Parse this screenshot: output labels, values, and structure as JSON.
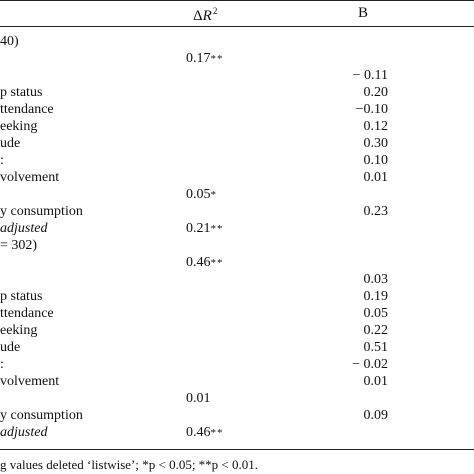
{
  "header": {
    "delta_symbol": "Δ",
    "r_symbol": "R",
    "r_superscript": "2",
    "col_b": "B"
  },
  "rows": [
    {
      "label": " 40)",
      "dr": "",
      "sig": "",
      "b": ""
    },
    {
      "label": "",
      "dr": "0.17",
      "sig": "**",
      "b": ""
    },
    {
      "label": "",
      "dr": "",
      "sig": "",
      "b": "− 0.11"
    },
    {
      "label": "p status",
      "dr": "",
      "sig": "",
      "b": "0.20"
    },
    {
      "label": "ttendance",
      "dr": "",
      "sig": "",
      "b": "−0.10"
    },
    {
      "label": "eeking",
      "dr": "",
      "sig": "",
      "b": "0.12"
    },
    {
      "label": "ude",
      "dr": "",
      "sig": "",
      "b": "0.30"
    },
    {
      "label": ":",
      "dr": "",
      "sig": "",
      "b": "0.10"
    },
    {
      "label": "volvement",
      "dr": "",
      "sig": "",
      "b": "0.01"
    },
    {
      "label": "",
      "dr": "0.05",
      "sig": "*",
      "b": ""
    },
    {
      "label": "y consumption",
      "dr": "",
      "sig": "",
      "b": "0.23"
    },
    {
      "label": "adjusted",
      "dr": "0.21",
      "sig": "**",
      "b": "",
      "italic": true
    },
    {
      "label": "= 302)",
      "dr": "",
      "sig": "",
      "b": ""
    },
    {
      "label": "",
      "dr": "0.46",
      "sig": "**",
      "b": ""
    },
    {
      "label": "",
      "dr": "",
      "sig": "",
      "b": "0.03"
    },
    {
      "label": "p status",
      "dr": "",
      "sig": "",
      "b": "0.19"
    },
    {
      "label": "ttendance",
      "dr": "",
      "sig": "",
      "b": "0.05"
    },
    {
      "label": "eeking",
      "dr": "",
      "sig": "",
      "b": "0.22"
    },
    {
      "label": "ude",
      "dr": "",
      "sig": "",
      "b": "0.51"
    },
    {
      "label": ":",
      "dr": "",
      "sig": "",
      "b": "− 0.02"
    },
    {
      "label": "volvement",
      "dr": "",
      "sig": "",
      "b": "0.01"
    },
    {
      "label": "",
      "dr": "0.01",
      "sig": "",
      "b": ""
    },
    {
      "label": "y consumption",
      "dr": "",
      "sig": "",
      "b": "0.09"
    },
    {
      "label": "adjusted",
      "dr": "0.46",
      "sig": "**",
      "b": "",
      "italic": true
    }
  ],
  "footnote": "g values deleted ‘listwise’; *p < 0.05; **p < 0.01."
}
